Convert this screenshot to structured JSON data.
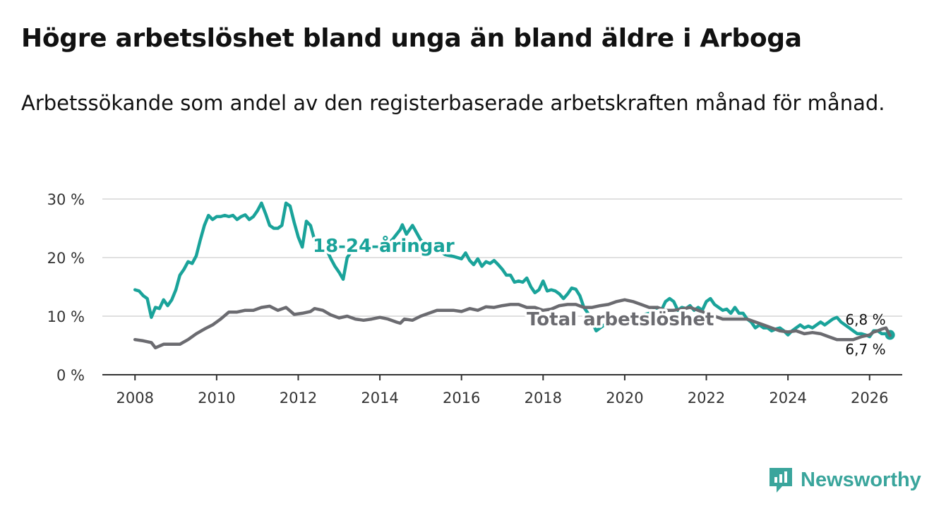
{
  "title": "Högre arbetslöshet bland unga än bland äldre i Arboga",
  "subtitle": "Arbetssökande som andel av den registerbaserade arbetskraften månad för månad.",
  "brand": "Newsworthy",
  "colors": {
    "youth": "#1aa39a",
    "total": "#6b6b70",
    "grid": "#d6d6d6",
    "axis": "#333333"
  },
  "chart_data": {
    "type": "line",
    "title": "Högre arbetslöshet bland unga än bland äldre i Arboga",
    "y_ticks": [
      {
        "value": 0,
        "label": "0 %"
      },
      {
        "value": 10,
        "label": "10 %"
      },
      {
        "value": 20,
        "label": "20 %"
      },
      {
        "value": 30,
        "label": "30 %"
      }
    ],
    "x_ticks": [
      {
        "value": 2008,
        "label": "2008"
      },
      {
        "value": 2010,
        "label": "2010"
      },
      {
        "value": 2012,
        "label": "2012"
      },
      {
        "value": 2014,
        "label": "2014"
      },
      {
        "value": 2016,
        "label": "2016"
      },
      {
        "value": 2018,
        "label": "2018"
      },
      {
        "value": 2020,
        "label": "2020"
      },
      {
        "value": 2022,
        "label": "2022"
      },
      {
        "value": 2024,
        "label": "2024"
      },
      {
        "value": 2026,
        "label": "2026"
      }
    ],
    "xlim": [
      2007.2,
      2026.8
    ],
    "ylim": [
      0,
      30
    ],
    "series": [
      {
        "name": "18-24-åringar",
        "color_key": "youth",
        "end_label": "6,8 %",
        "points": [
          [
            2008.0,
            14.5
          ],
          [
            2008.1,
            14.3
          ],
          [
            2008.2,
            13.5
          ],
          [
            2008.3,
            13.0
          ],
          [
            2008.4,
            9.8
          ],
          [
            2008.5,
            11.5
          ],
          [
            2008.6,
            11.3
          ],
          [
            2008.7,
            12.8
          ],
          [
            2008.8,
            11.8
          ],
          [
            2008.9,
            12.8
          ],
          [
            2009.0,
            14.5
          ],
          [
            2009.1,
            17.0
          ],
          [
            2009.2,
            18.0
          ],
          [
            2009.3,
            19.3
          ],
          [
            2009.4,
            19.0
          ],
          [
            2009.5,
            20.3
          ],
          [
            2009.6,
            23.0
          ],
          [
            2009.7,
            25.5
          ],
          [
            2009.8,
            27.2
          ],
          [
            2009.9,
            26.5
          ],
          [
            2010.0,
            27.0
          ],
          [
            2010.1,
            27.0
          ],
          [
            2010.2,
            27.2
          ],
          [
            2010.3,
            27.0
          ],
          [
            2010.4,
            27.2
          ],
          [
            2010.5,
            26.5
          ],
          [
            2010.6,
            27.0
          ],
          [
            2010.7,
            27.3
          ],
          [
            2010.8,
            26.5
          ],
          [
            2010.9,
            27.0
          ],
          [
            2011.0,
            28.0
          ],
          [
            2011.1,
            29.3
          ],
          [
            2011.2,
            27.5
          ],
          [
            2011.3,
            25.5
          ],
          [
            2011.4,
            25.0
          ],
          [
            2011.5,
            25.0
          ],
          [
            2011.6,
            25.5
          ],
          [
            2011.7,
            29.3
          ],
          [
            2011.8,
            28.8
          ],
          [
            2011.9,
            26.0
          ],
          [
            2012.0,
            23.5
          ],
          [
            2012.1,
            21.8
          ],
          [
            2012.2,
            26.2
          ],
          [
            2012.3,
            25.5
          ],
          [
            2012.4,
            23.0
          ],
          [
            2012.5,
            21.8
          ],
          [
            2012.6,
            20.8
          ],
          [
            2012.7,
            21.3
          ],
          [
            2012.8,
            19.8
          ],
          [
            2012.9,
            18.5
          ],
          [
            2013.0,
            17.5
          ],
          [
            2013.1,
            16.3
          ],
          [
            2013.2,
            20.0
          ],
          [
            2013.3,
            21.0
          ],
          [
            2013.5,
            21.3
          ],
          [
            2013.7,
            21.8
          ],
          [
            2013.9,
            22.0
          ],
          [
            2014.1,
            22.5
          ],
          [
            2014.3,
            23.0
          ],
          [
            2014.5,
            24.8
          ],
          [
            2014.55,
            25.6
          ],
          [
            2014.65,
            24.0
          ],
          [
            2014.8,
            25.5
          ],
          [
            2015.0,
            23.0
          ],
          [
            2015.2,
            22.0
          ],
          [
            2015.4,
            21.5
          ],
          [
            2015.6,
            20.5
          ],
          [
            2015.8,
            20.2
          ],
          [
            2016.0,
            19.8
          ],
          [
            2016.1,
            20.8
          ],
          [
            2016.2,
            19.5
          ],
          [
            2016.3,
            18.8
          ],
          [
            2016.4,
            19.8
          ],
          [
            2016.5,
            18.5
          ],
          [
            2016.6,
            19.3
          ],
          [
            2016.7,
            19.0
          ],
          [
            2016.8,
            19.5
          ],
          [
            2016.9,
            18.8
          ],
          [
            2017.0,
            18.0
          ],
          [
            2017.1,
            17.0
          ],
          [
            2017.2,
            17.0
          ],
          [
            2017.3,
            15.8
          ],
          [
            2017.4,
            16.0
          ],
          [
            2017.5,
            15.8
          ],
          [
            2017.6,
            16.5
          ],
          [
            2017.7,
            15.0
          ],
          [
            2017.8,
            14.0
          ],
          [
            2017.9,
            14.5
          ],
          [
            2018.0,
            16.0
          ],
          [
            2018.1,
            14.3
          ],
          [
            2018.2,
            14.5
          ],
          [
            2018.3,
            14.3
          ],
          [
            2018.4,
            13.8
          ],
          [
            2018.5,
            13.0
          ],
          [
            2018.6,
            13.8
          ],
          [
            2018.7,
            14.8
          ],
          [
            2018.8,
            14.6
          ],
          [
            2018.9,
            13.5
          ],
          [
            2019.0,
            11.5
          ],
          [
            2019.1,
            10.5
          ],
          [
            2019.2,
            9.0
          ],
          [
            2019.3,
            7.5
          ],
          [
            2019.4,
            8.0
          ],
          [
            2019.5,
            8.5
          ],
          [
            2019.7,
            9.0
          ],
          [
            2020.0,
            9.5
          ],
          [
            2020.3,
            10.0
          ],
          [
            2020.6,
            10.5
          ],
          [
            2020.8,
            11.5
          ],
          [
            2020.9,
            11.0
          ],
          [
            2021.0,
            12.5
          ],
          [
            2021.1,
            13.0
          ],
          [
            2021.2,
            12.5
          ],
          [
            2021.3,
            11.0
          ],
          [
            2021.4,
            11.5
          ],
          [
            2021.5,
            11.3
          ],
          [
            2021.6,
            11.8
          ],
          [
            2021.7,
            11.0
          ],
          [
            2021.8,
            11.5
          ],
          [
            2021.9,
            11.0
          ],
          [
            2022.0,
            12.5
          ],
          [
            2022.1,
            13.0
          ],
          [
            2022.2,
            12.0
          ],
          [
            2022.3,
            11.5
          ],
          [
            2022.4,
            11.0
          ],
          [
            2022.5,
            11.2
          ],
          [
            2022.6,
            10.5
          ],
          [
            2022.7,
            11.5
          ],
          [
            2022.8,
            10.5
          ],
          [
            2022.9,
            10.5
          ],
          [
            2023.0,
            9.5
          ],
          [
            2023.1,
            9.0
          ],
          [
            2023.2,
            8.0
          ],
          [
            2023.3,
            8.5
          ],
          [
            2023.4,
            8.0
          ],
          [
            2023.5,
            8.0
          ],
          [
            2023.6,
            7.5
          ],
          [
            2023.7,
            7.8
          ],
          [
            2023.8,
            8.0
          ],
          [
            2023.9,
            7.5
          ],
          [
            2024.0,
            6.8
          ],
          [
            2024.1,
            7.5
          ],
          [
            2024.2,
            8.0
          ],
          [
            2024.3,
            8.5
          ],
          [
            2024.4,
            8.0
          ],
          [
            2024.5,
            8.3
          ],
          [
            2024.6,
            8.0
          ],
          [
            2024.7,
            8.5
          ],
          [
            2024.8,
            9.0
          ],
          [
            2024.9,
            8.5
          ],
          [
            2025.0,
            9.0
          ],
          [
            2025.1,
            9.5
          ],
          [
            2025.2,
            9.8
          ],
          [
            2025.3,
            9.0
          ],
          [
            2025.4,
            8.5
          ],
          [
            2025.5,
            8.0
          ],
          [
            2025.6,
            7.5
          ],
          [
            2025.7,
            7.0
          ],
          [
            2025.8,
            7.0
          ],
          [
            2025.9,
            6.8
          ],
          [
            2026.0,
            6.5
          ],
          [
            2026.1,
            7.5
          ],
          [
            2026.2,
            7.5
          ],
          [
            2026.3,
            7.0
          ],
          [
            2026.4,
            7.0
          ],
          [
            2026.5,
            6.8
          ]
        ]
      },
      {
        "name": "Total arbetslöshet",
        "color_key": "total",
        "end_label": "6,7 %",
        "points": [
          [
            2008.0,
            6.0
          ],
          [
            2008.2,
            5.8
          ],
          [
            2008.4,
            5.5
          ],
          [
            2008.5,
            4.6
          ],
          [
            2008.7,
            5.2
          ],
          [
            2008.9,
            5.2
          ],
          [
            2009.1,
            5.2
          ],
          [
            2009.3,
            6.0
          ],
          [
            2009.5,
            7.0
          ],
          [
            2009.7,
            7.8
          ],
          [
            2009.9,
            8.5
          ],
          [
            2010.1,
            9.5
          ],
          [
            2010.3,
            10.7
          ],
          [
            2010.5,
            10.7
          ],
          [
            2010.7,
            11.0
          ],
          [
            2010.9,
            11.0
          ],
          [
            2011.1,
            11.5
          ],
          [
            2011.3,
            11.7
          ],
          [
            2011.5,
            11.0
          ],
          [
            2011.7,
            11.5
          ],
          [
            2011.9,
            10.3
          ],
          [
            2012.1,
            10.5
          ],
          [
            2012.3,
            10.8
          ],
          [
            2012.4,
            11.3
          ],
          [
            2012.6,
            11.0
          ],
          [
            2012.8,
            10.2
          ],
          [
            2013.0,
            9.7
          ],
          [
            2013.2,
            10.0
          ],
          [
            2013.4,
            9.5
          ],
          [
            2013.6,
            9.3
          ],
          [
            2013.8,
            9.5
          ],
          [
            2014.0,
            9.8
          ],
          [
            2014.2,
            9.5
          ],
          [
            2014.4,
            9.0
          ],
          [
            2014.5,
            8.8
          ],
          [
            2014.6,
            9.5
          ],
          [
            2014.8,
            9.3
          ],
          [
            2015.0,
            10.0
          ],
          [
            2015.2,
            10.5
          ],
          [
            2015.4,
            11.0
          ],
          [
            2015.6,
            11.0
          ],
          [
            2015.8,
            11.0
          ],
          [
            2016.0,
            10.8
          ],
          [
            2016.2,
            11.3
          ],
          [
            2016.4,
            11.0
          ],
          [
            2016.6,
            11.6
          ],
          [
            2016.8,
            11.5
          ],
          [
            2017.0,
            11.8
          ],
          [
            2017.2,
            12.0
          ],
          [
            2017.4,
            12.0
          ],
          [
            2017.6,
            11.5
          ],
          [
            2017.8,
            11.5
          ],
          [
            2018.0,
            11.0
          ],
          [
            2018.2,
            11.2
          ],
          [
            2018.4,
            11.8
          ],
          [
            2018.6,
            12.0
          ],
          [
            2018.8,
            12.0
          ],
          [
            2019.0,
            11.5
          ],
          [
            2019.2,
            11.5
          ],
          [
            2019.4,
            11.8
          ],
          [
            2019.6,
            12.0
          ],
          [
            2019.8,
            12.5
          ],
          [
            2020.0,
            12.8
          ],
          [
            2020.2,
            12.5
          ],
          [
            2020.4,
            12.0
          ],
          [
            2020.6,
            11.5
          ],
          [
            2020.8,
            11.5
          ],
          [
            2021.0,
            11.0
          ],
          [
            2021.2,
            11.0
          ],
          [
            2021.4,
            11.2
          ],
          [
            2021.6,
            11.5
          ],
          [
            2021.8,
            11.0
          ],
          [
            2022.0,
            10.5
          ],
          [
            2022.2,
            10.0
          ],
          [
            2022.4,
            9.5
          ],
          [
            2022.6,
            9.5
          ],
          [
            2022.8,
            9.5
          ],
          [
            2023.0,
            9.5
          ],
          [
            2023.2,
            9.0
          ],
          [
            2023.4,
            8.5
          ],
          [
            2023.6,
            8.0
          ],
          [
            2023.8,
            7.5
          ],
          [
            2024.0,
            7.3
          ],
          [
            2024.2,
            7.5
          ],
          [
            2024.4,
            7.0
          ],
          [
            2024.6,
            7.2
          ],
          [
            2024.8,
            7.0
          ],
          [
            2025.0,
            6.5
          ],
          [
            2025.2,
            6.0
          ],
          [
            2025.4,
            6.0
          ],
          [
            2025.6,
            6.0
          ],
          [
            2025.8,
            6.5
          ],
          [
            2026.0,
            6.8
          ],
          [
            2026.1,
            7.3
          ],
          [
            2026.2,
            7.5
          ],
          [
            2026.3,
            7.8
          ],
          [
            2026.4,
            8.0
          ],
          [
            2026.5,
            6.7
          ]
        ]
      }
    ]
  }
}
